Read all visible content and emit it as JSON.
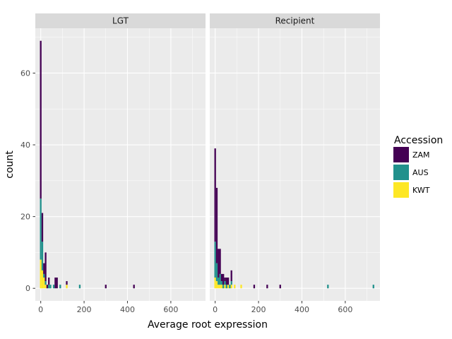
{
  "chart_data": {
    "type": "bar",
    "subtype": "faceted-stacked-histogram",
    "xlabel": "Average root expression",
    "ylabel": "count",
    "xlim": [
      -25,
      760
    ],
    "ylim": [
      -3.5,
      72.5
    ],
    "x_ticks": [
      0,
      200,
      400,
      600
    ],
    "y_ticks": [
      0,
      20,
      40,
      60
    ],
    "bin_width": 7.5,
    "grid": true,
    "legend": {
      "title": "Accession",
      "position": "right",
      "entries": [
        {
          "name": "ZAM",
          "color": "#440154"
        },
        {
          "name": "AUS",
          "color": "#21918c"
        },
        {
          "name": "KWT",
          "color": "#fde725"
        }
      ]
    },
    "series_colors": {
      "ZAM": "#440154",
      "AUS": "#21918c",
      "KWT": "#fde725"
    },
    "facets": [
      {
        "label": "LGT",
        "bins": [
          {
            "x": 0,
            "KWT": 8,
            "AUS": 17,
            "ZAM": 44
          },
          {
            "x": 7.5,
            "KWT": 5,
            "AUS": 8,
            "ZAM": 8
          },
          {
            "x": 15,
            "KWT": 3,
            "AUS": 1,
            "ZAM": 3
          },
          {
            "x": 22.5,
            "KWT": 1,
            "AUS": 1,
            "ZAM": 8
          },
          {
            "x": 30,
            "KWT": 0,
            "AUS": 0,
            "ZAM": 1
          },
          {
            "x": 37.5,
            "KWT": 0,
            "AUS": 1,
            "ZAM": 2
          },
          {
            "x": 45,
            "KWT": 0,
            "AUS": 1,
            "ZAM": 0
          },
          {
            "x": 60,
            "KWT": 0,
            "AUS": 1,
            "ZAM": 0
          },
          {
            "x": 67.5,
            "KWT": 0,
            "AUS": 0,
            "ZAM": 3
          },
          {
            "x": 75,
            "KWT": 0,
            "AUS": 0,
            "ZAM": 3
          },
          {
            "x": 90,
            "KWT": 0,
            "AUS": 1,
            "ZAM": 0
          },
          {
            "x": 120,
            "KWT": 1,
            "AUS": 0,
            "ZAM": 1
          },
          {
            "x": 180,
            "KWT": 0,
            "AUS": 1,
            "ZAM": 0
          },
          {
            "x": 300,
            "KWT": 0,
            "AUS": 0,
            "ZAM": 1
          },
          {
            "x": 430,
            "KWT": 0,
            "AUS": 0,
            "ZAM": 1
          }
        ]
      },
      {
        "label": "Recipient",
        "bins": [
          {
            "x": 0,
            "KWT": 3,
            "AUS": 10,
            "ZAM": 26
          },
          {
            "x": 7.5,
            "KWT": 2,
            "AUS": 5,
            "ZAM": 21
          },
          {
            "x": 15,
            "KWT": 1,
            "AUS": 2,
            "ZAM": 8
          },
          {
            "x": 22.5,
            "KWT": 1,
            "AUS": 3,
            "ZAM": 7
          },
          {
            "x": 30,
            "KWT": 1,
            "AUS": 1,
            "ZAM": 2
          },
          {
            "x": 37.5,
            "KWT": 0,
            "AUS": 1,
            "ZAM": 3
          },
          {
            "x": 45,
            "KWT": 1,
            "AUS": 1,
            "ZAM": 1
          },
          {
            "x": 52.5,
            "KWT": 0,
            "AUS": 1,
            "ZAM": 2
          },
          {
            "x": 60,
            "KWT": 1,
            "AUS": 0,
            "ZAM": 2
          },
          {
            "x": 67.5,
            "KWT": 0,
            "AUS": 1,
            "ZAM": 0
          },
          {
            "x": 75,
            "KWT": 1,
            "AUS": 1,
            "ZAM": 3
          },
          {
            "x": 90,
            "KWT": 1,
            "AUS": 0,
            "ZAM": 0
          },
          {
            "x": 120,
            "KWT": 1,
            "AUS": 0,
            "ZAM": 0
          },
          {
            "x": 180,
            "KWT": 0,
            "AUS": 0,
            "ZAM": 1
          },
          {
            "x": 240,
            "KWT": 0,
            "AUS": 0,
            "ZAM": 1
          },
          {
            "x": 300,
            "KWT": 0,
            "AUS": 0,
            "ZAM": 1
          },
          {
            "x": 520,
            "KWT": 0,
            "AUS": 1,
            "ZAM": 0
          },
          {
            "x": 730,
            "KWT": 0,
            "AUS": 1,
            "ZAM": 0
          }
        ]
      }
    ]
  }
}
